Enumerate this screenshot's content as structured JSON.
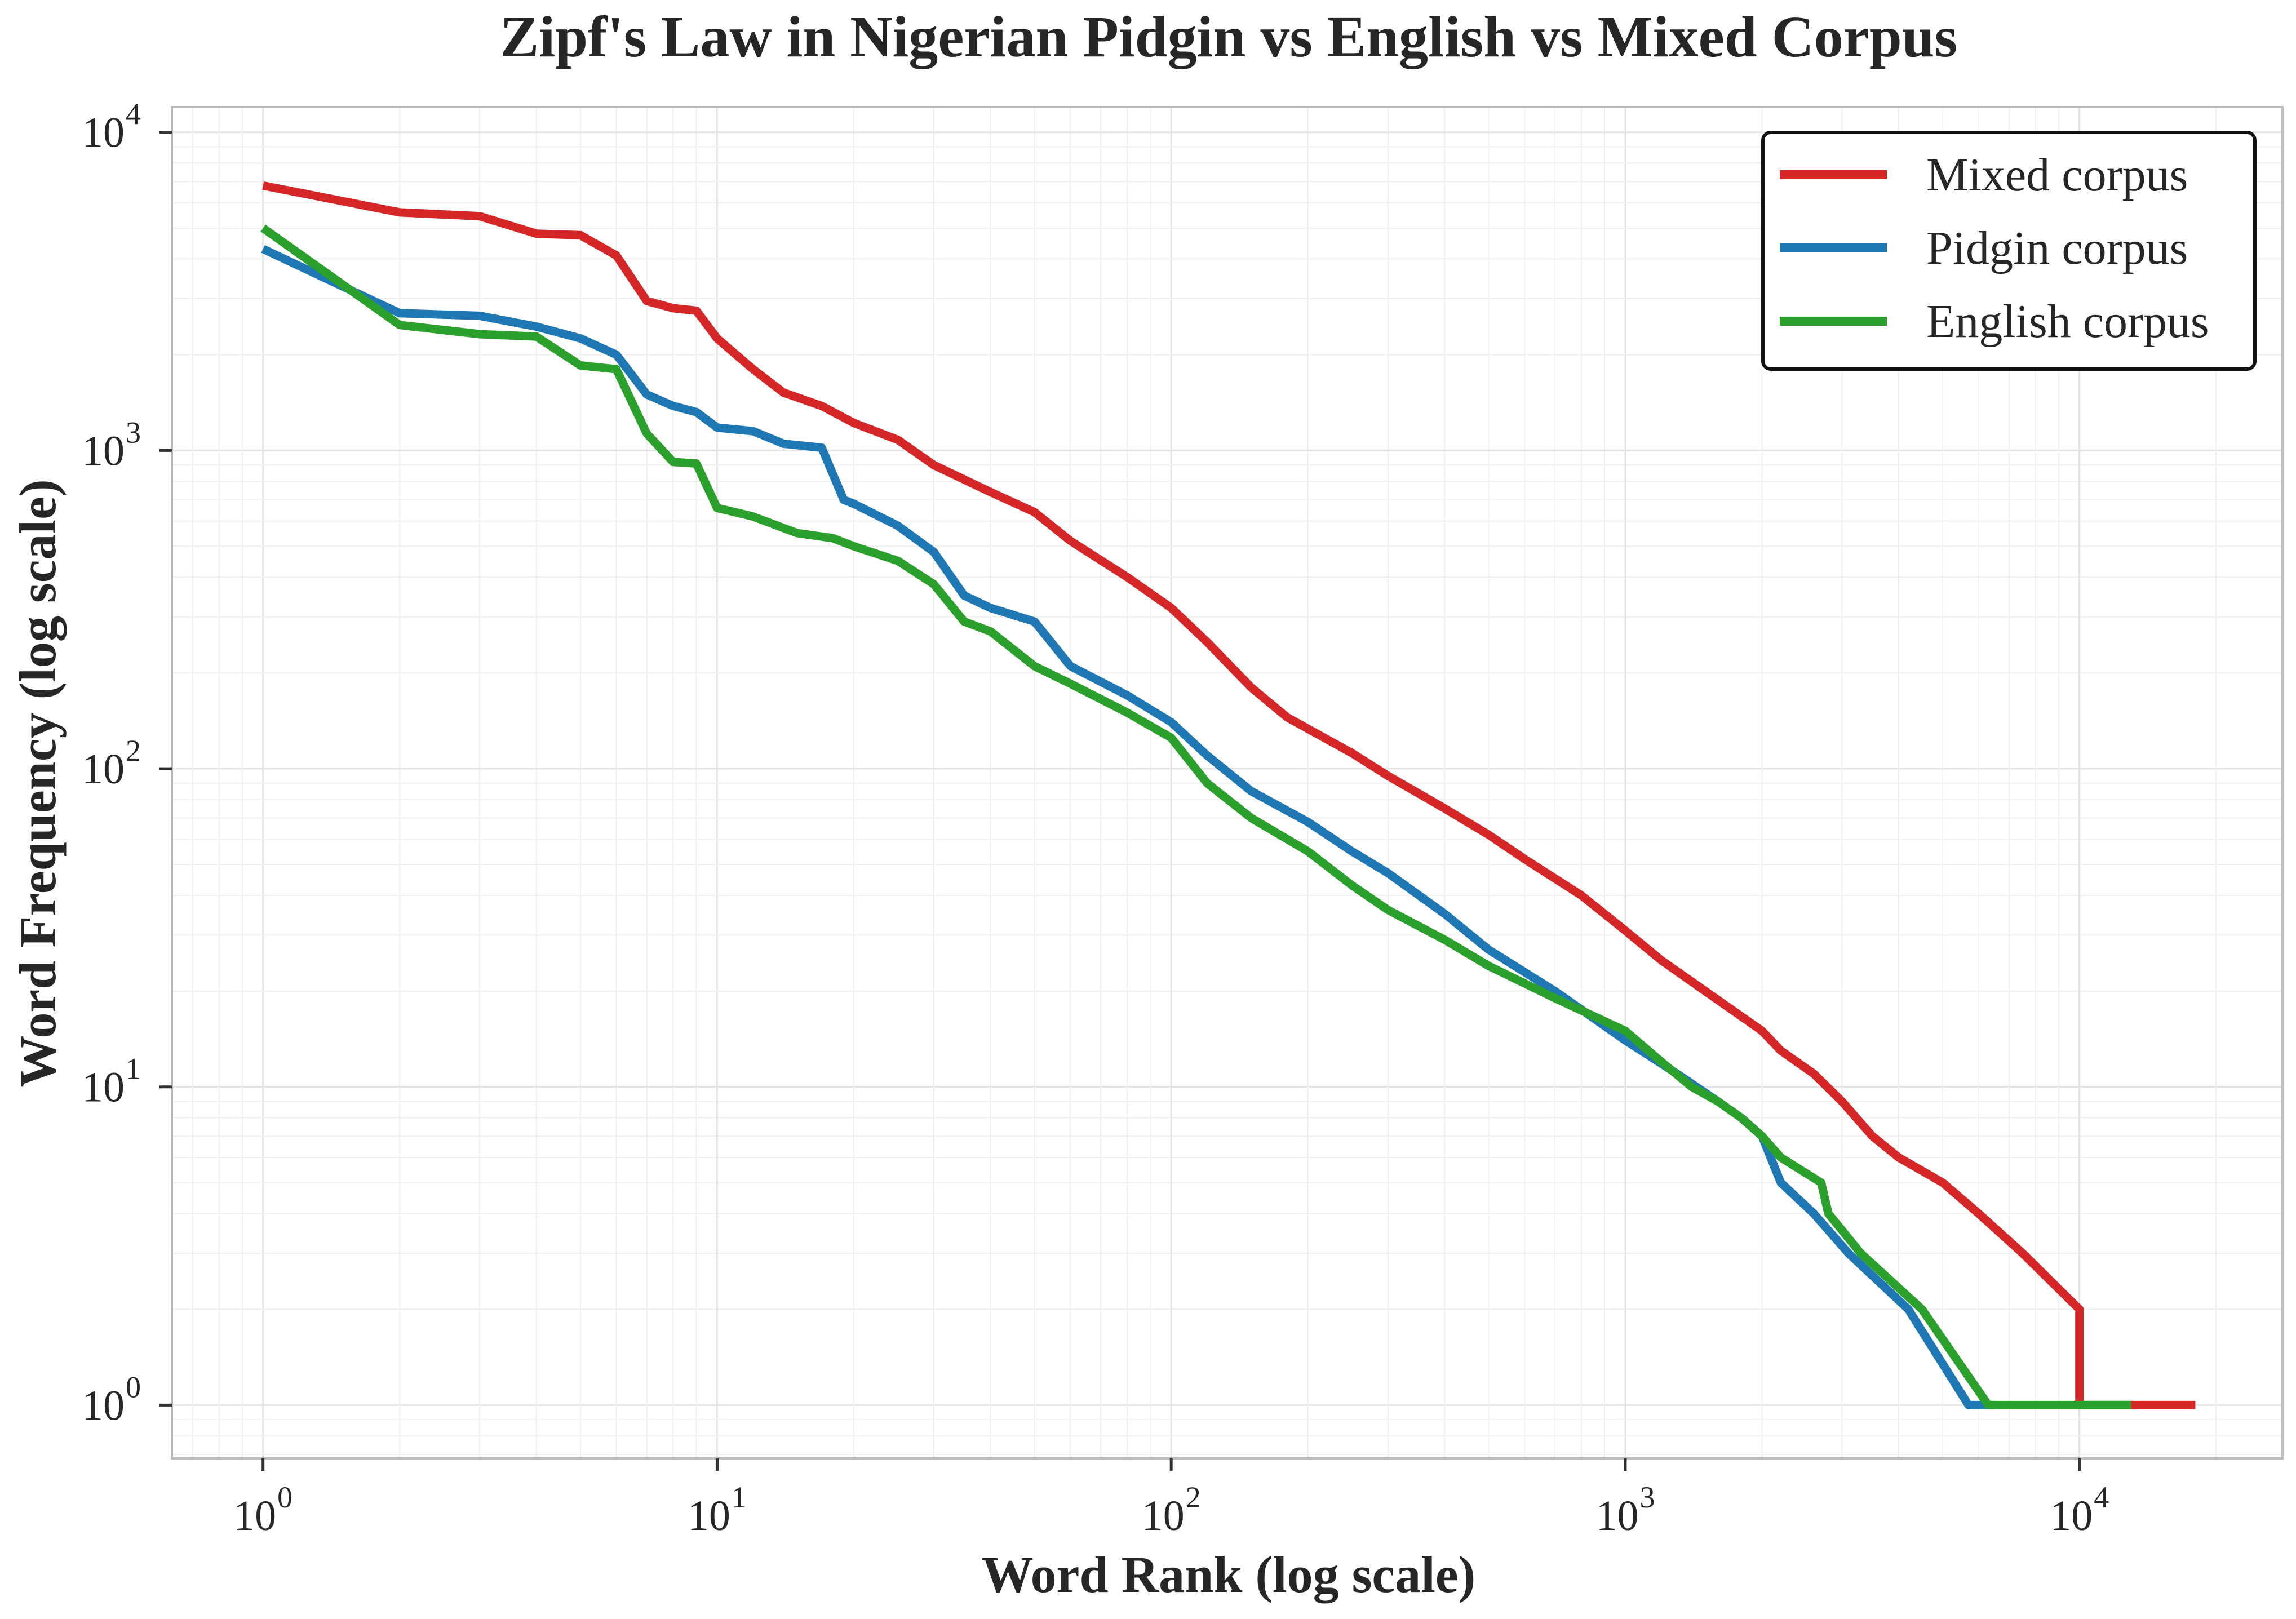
{
  "chart_data": {
    "type": "line",
    "title": "Zipf's Law in Nigerian Pidgin vs English vs Mixed Corpus",
    "xlabel": "Word Rank (log scale)",
    "ylabel": "Word Frequency (log scale)",
    "x_scale": "log",
    "y_scale": "log",
    "xlim": [
      0.63,
      28000
    ],
    "ylim": [
      0.68,
      12000
    ],
    "x_ticks": [
      {
        "base": "10",
        "exp": "0",
        "value": 1
      },
      {
        "base": "10",
        "exp": "1",
        "value": 10
      },
      {
        "base": "10",
        "exp": "2",
        "value": 100
      },
      {
        "base": "10",
        "exp": "3",
        "value": 1000
      },
      {
        "base": "10",
        "exp": "4",
        "value": 10000
      }
    ],
    "y_ticks": [
      {
        "base": "10",
        "exp": "0",
        "value": 1
      },
      {
        "base": "10",
        "exp": "1",
        "value": 10
      },
      {
        "base": "10",
        "exp": "2",
        "value": 100
      },
      {
        "base": "10",
        "exp": "3",
        "value": 1000
      },
      {
        "base": "10",
        "exp": "4",
        "value": 10000
      }
    ],
    "grid": true,
    "legend_position": "top-right",
    "series": [
      {
        "name": "Mixed corpus",
        "color": "#d62728",
        "points": [
          [
            1,
            6800
          ],
          [
            2,
            5600
          ],
          [
            3,
            5450
          ],
          [
            4,
            4800
          ],
          [
            5,
            4750
          ],
          [
            6,
            4100
          ],
          [
            7,
            2950
          ],
          [
            8,
            2800
          ],
          [
            9,
            2750
          ],
          [
            10,
            2250
          ],
          [
            12,
            1800
          ],
          [
            14,
            1520
          ],
          [
            17,
            1380
          ],
          [
            20,
            1220
          ],
          [
            25,
            1080
          ],
          [
            30,
            900
          ],
          [
            40,
            740
          ],
          [
            50,
            640
          ],
          [
            60,
            520
          ],
          [
            80,
            400
          ],
          [
            100,
            320
          ],
          [
            120,
            250
          ],
          [
            150,
            180
          ],
          [
            180,
            145
          ],
          [
            250,
            112
          ],
          [
            300,
            95
          ],
          [
            400,
            75
          ],
          [
            500,
            62
          ],
          [
            600,
            52
          ],
          [
            800,
            40
          ],
          [
            1000,
            31
          ],
          [
            1200,
            25
          ],
          [
            1500,
            20
          ],
          [
            2000,
            15
          ],
          [
            2200,
            13
          ],
          [
            2600,
            11
          ],
          [
            3000,
            9
          ],
          [
            3500,
            7
          ],
          [
            4000,
            6
          ],
          [
            5000,
            5
          ],
          [
            6000,
            4
          ],
          [
            7500,
            3
          ],
          [
            10000,
            2
          ],
          [
            10000,
            1
          ],
          [
            18000,
            1
          ]
        ]
      },
      {
        "name": "Pidgin corpus",
        "color": "#1f77b4",
        "points": [
          [
            1,
            4300
          ],
          [
            2,
            2700
          ],
          [
            3,
            2650
          ],
          [
            4,
            2450
          ],
          [
            5,
            2250
          ],
          [
            6,
            2000
          ],
          [
            7,
            1500
          ],
          [
            8,
            1380
          ],
          [
            9,
            1320
          ],
          [
            10,
            1180
          ],
          [
            12,
            1150
          ],
          [
            14,
            1050
          ],
          [
            17,
            1020
          ],
          [
            19,
            700
          ],
          [
            20,
            680
          ],
          [
            25,
            580
          ],
          [
            30,
            480
          ],
          [
            35,
            350
          ],
          [
            40,
            320
          ],
          [
            50,
            290
          ],
          [
            60,
            210
          ],
          [
            80,
            170
          ],
          [
            100,
            140
          ],
          [
            120,
            110
          ],
          [
            150,
            85
          ],
          [
            200,
            68
          ],
          [
            250,
            55
          ],
          [
            300,
            47
          ],
          [
            400,
            35
          ],
          [
            500,
            27
          ],
          [
            700,
            20
          ],
          [
            1000,
            14
          ],
          [
            1300,
            11
          ],
          [
            1600,
            9
          ],
          [
            1800,
            8
          ],
          [
            2000,
            7
          ],
          [
            2200,
            5
          ],
          [
            2600,
            4
          ],
          [
            3100,
            3
          ],
          [
            4200,
            2
          ],
          [
            5700,
            1
          ],
          [
            6500,
            1
          ]
        ]
      },
      {
        "name": "English corpus",
        "color": "#2ca02c",
        "points": [
          [
            1,
            5000
          ],
          [
            2,
            2480
          ],
          [
            3,
            2320
          ],
          [
            4,
            2280
          ],
          [
            5,
            1850
          ],
          [
            6,
            1800
          ],
          [
            7,
            1130
          ],
          [
            8,
            920
          ],
          [
            9,
            910
          ],
          [
            10,
            660
          ],
          [
            12,
            620
          ],
          [
            15,
            550
          ],
          [
            18,
            530
          ],
          [
            20,
            500
          ],
          [
            25,
            450
          ],
          [
            30,
            380
          ],
          [
            35,
            290
          ],
          [
            40,
            270
          ],
          [
            50,
            210
          ],
          [
            60,
            185
          ],
          [
            80,
            150
          ],
          [
            100,
            125
          ],
          [
            120,
            90
          ],
          [
            150,
            70
          ],
          [
            200,
            55
          ],
          [
            250,
            43
          ],
          [
            300,
            36
          ],
          [
            400,
            29
          ],
          [
            500,
            24
          ],
          [
            700,
            19
          ],
          [
            1000,
            15
          ],
          [
            1200,
            12
          ],
          [
            1400,
            10
          ],
          [
            1600,
            9
          ],
          [
            1800,
            8
          ],
          [
            2000,
            7
          ],
          [
            2200,
            6
          ],
          [
            2700,
            5
          ],
          [
            2800,
            4
          ],
          [
            3300,
            3
          ],
          [
            4500,
            2
          ],
          [
            6300,
            1
          ],
          [
            13000,
            1
          ]
        ]
      }
    ]
  }
}
